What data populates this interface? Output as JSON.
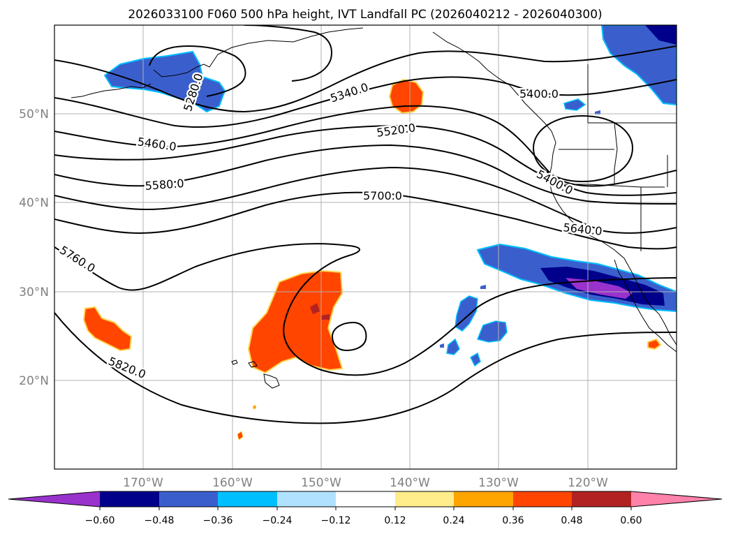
{
  "title": "2026033100 F060 500 hPa height, IVT Landfall PC (2026040212 - 2026040300)",
  "map": {
    "lon_range": [
      -180,
      -110
    ],
    "lat_range": [
      10,
      60
    ],
    "lon_ticks": [
      "170°W",
      "160°W",
      "150°W",
      "140°W",
      "130°W",
      "120°W"
    ],
    "lat_ticks": [
      "20°N",
      "30°N",
      "40°N",
      "50°N"
    ],
    "grid": true
  },
  "contour_labels": [
    "5280.0",
    "5340.0",
    "5400.0",
    "5400.0",
    "5460.0",
    "5520.0",
    "5580.0",
    "5640.0",
    "5700.0",
    "5760.0",
    "5820.0"
  ],
  "colorbar": {
    "ticks": [
      "−0.60",
      "−0.48",
      "−0.36",
      "−0.24",
      "−0.12",
      "0.12",
      "0.24",
      "0.36",
      "0.48",
      "0.60"
    ],
    "colors": [
      "#9932cc",
      "#00008b",
      "#3a5fcd",
      "#00bfff",
      "#b0e2ff",
      "#ffffff",
      "#ffec8b",
      "#ffa500",
      "#ff4500",
      "#b22222",
      "#ff82ab"
    ]
  }
}
